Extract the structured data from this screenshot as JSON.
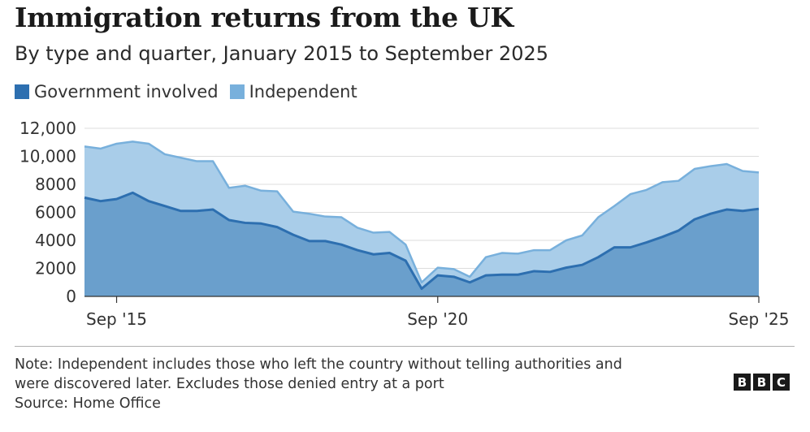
{
  "title": "Immigration returns from the UK",
  "subtitle": "By type and quarter, January 2015 to September 2025",
  "legend": [
    {
      "label": "Government involved",
      "color": "#2d6fb0"
    },
    {
      "label": "Independent",
      "color": "#78b0dc"
    }
  ],
  "note_line1": "Note: Independent includes those who left the country without telling authorities and",
  "note_line2": "were discovered later. Excludes those denied entry at a port",
  "source": "Source: Home Office",
  "logo": [
    "B",
    "B",
    "C"
  ],
  "colors": {
    "government_fill": "#6a9fcc",
    "government_line": "#2d6fb0",
    "total_fill": "#a9cde9",
    "total_line": "#78b0dc",
    "grid": "#dddddd"
  },
  "chart_data": {
    "type": "area",
    "stacked": true,
    "x_labels": [
      "Sep '15",
      "Sep '20",
      "Sep '25"
    ],
    "x_label_quarter_index": [
      2,
      22,
      42
    ],
    "quarters_start": "2015 Q1",
    "yticks": [
      "12,000",
      "10,000",
      "8000",
      "6000",
      "4000",
      "2000",
      "0"
    ],
    "ytick_values": [
      12000,
      10000,
      8000,
      6000,
      4000,
      2000,
      0
    ],
    "ylim": [
      0,
      12000
    ],
    "grid": true,
    "legend_position": "top-left",
    "series": [
      {
        "name": "Government involved",
        "values": [
          7050,
          6800,
          6950,
          7400,
          6800,
          6450,
          6100,
          6100,
          6200,
          5450,
          5250,
          5200,
          4950,
          4400,
          3950,
          3950,
          3700,
          3300,
          3000,
          3100,
          2550,
          550,
          1500,
          1400,
          1000,
          1500,
          1550,
          1550,
          1800,
          1750,
          2050,
          2250,
          2800,
          3500,
          3500,
          3850,
          4250,
          4700,
          5500,
          5900,
          6200,
          6100,
          6250
        ]
      },
      {
        "name": "Independent",
        "values": [
          3650,
          3750,
          3950,
          3650,
          4100,
          3700,
          3800,
          3550,
          3450,
          2300,
          2650,
          2350,
          2550,
          1650,
          1950,
          1750,
          1950,
          1600,
          1550,
          1500,
          1150,
          450,
          550,
          550,
          400,
          1300,
          1550,
          1500,
          1500,
          1550,
          1950,
          2100,
          2850,
          2950,
          3800,
          3750,
          3900,
          3550,
          3600,
          3400,
          3250,
          2850,
          2600
        ]
      }
    ]
  }
}
